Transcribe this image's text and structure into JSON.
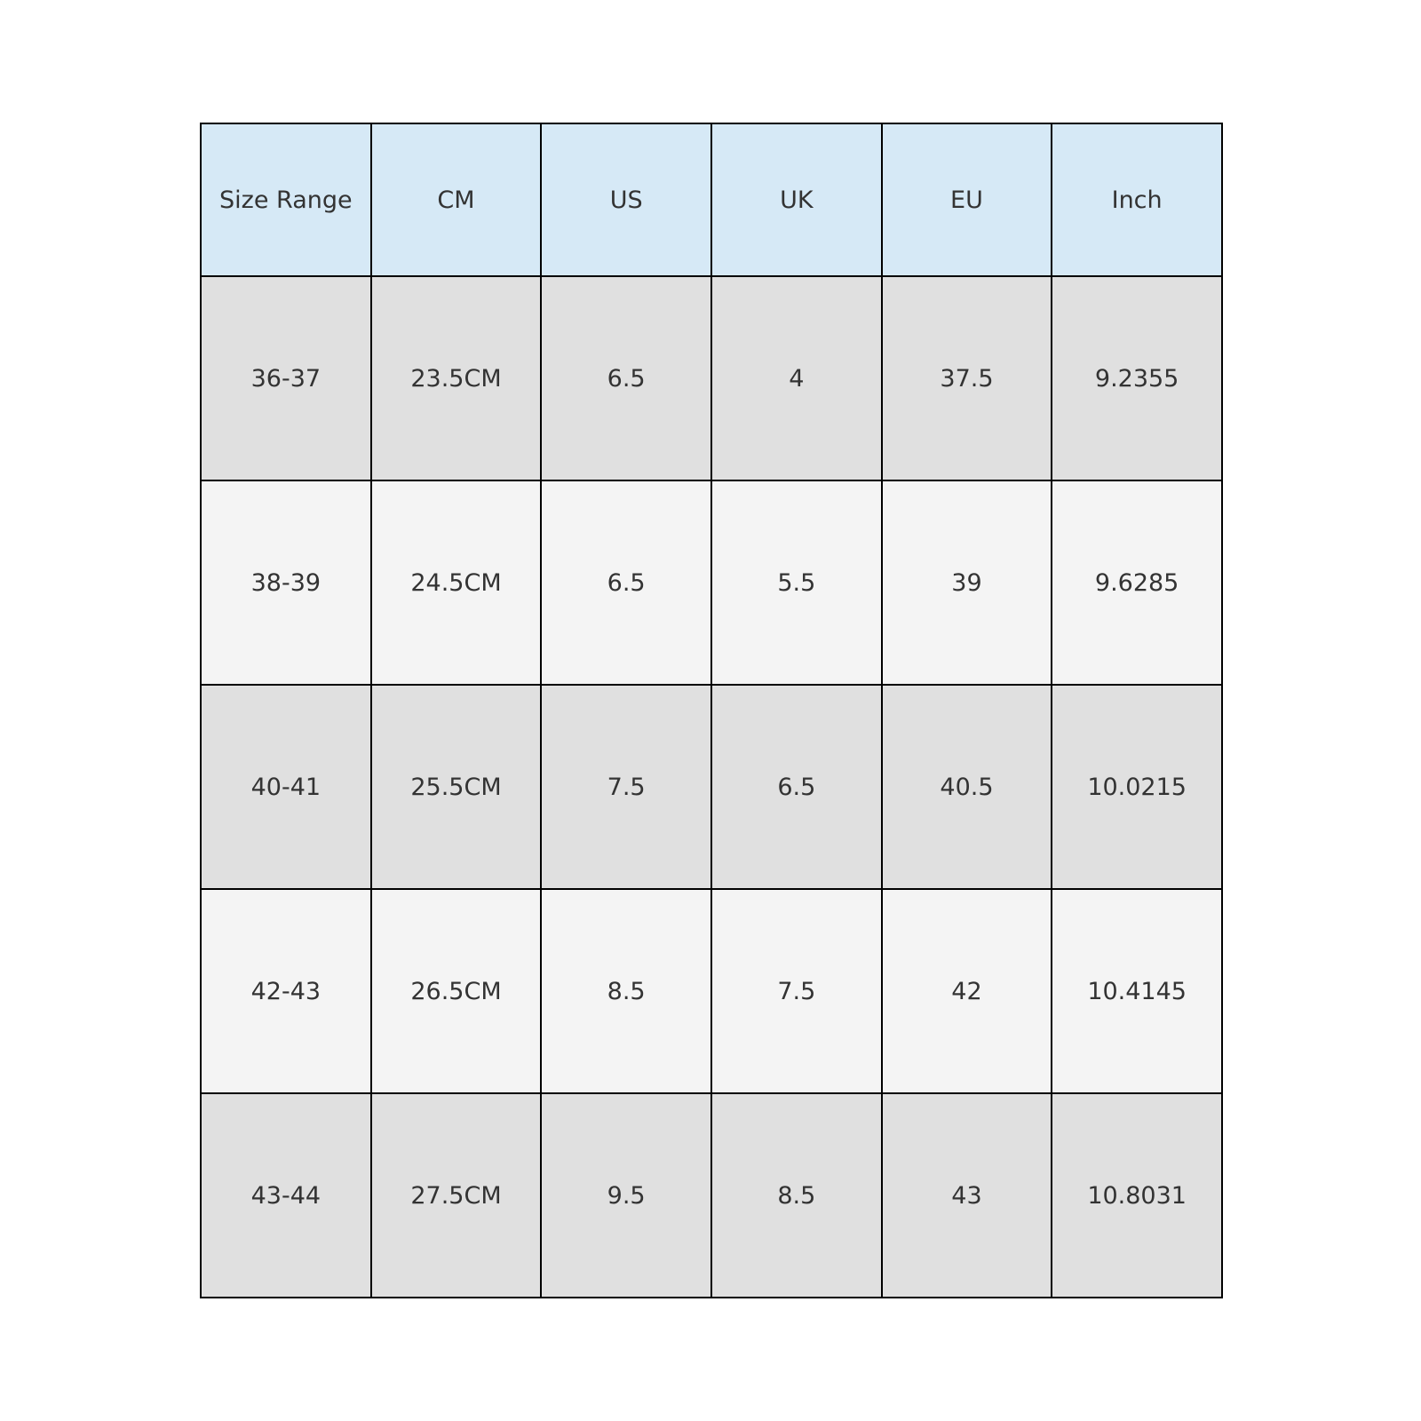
{
  "table": {
    "headers": [
      "Size Range",
      "CM",
      "US",
      "UK",
      "EU",
      "Inch"
    ],
    "rows": [
      [
        "36-37",
        "23.5CM",
        "6.5",
        "4",
        "37.5",
        "9.2355"
      ],
      [
        "38-39",
        "24.5CM",
        "6.5",
        "5.5",
        "39",
        "9.6285"
      ],
      [
        "40-41",
        "25.5CM",
        "7.5",
        "6.5",
        "40.5",
        "10.0215"
      ],
      [
        "42-43",
        "26.5CM",
        "8.5",
        "7.5",
        "42",
        "10.4145"
      ],
      [
        "43-44",
        "27.5CM",
        "9.5",
        "8.5",
        "43",
        "10.8031"
      ]
    ]
  },
  "colors": {
    "header_bg": "#d6e9f6",
    "row_odd_bg": "#e0e0e0",
    "row_even_bg": "#f4f4f4",
    "border": "#000000",
    "text": "#333333"
  }
}
